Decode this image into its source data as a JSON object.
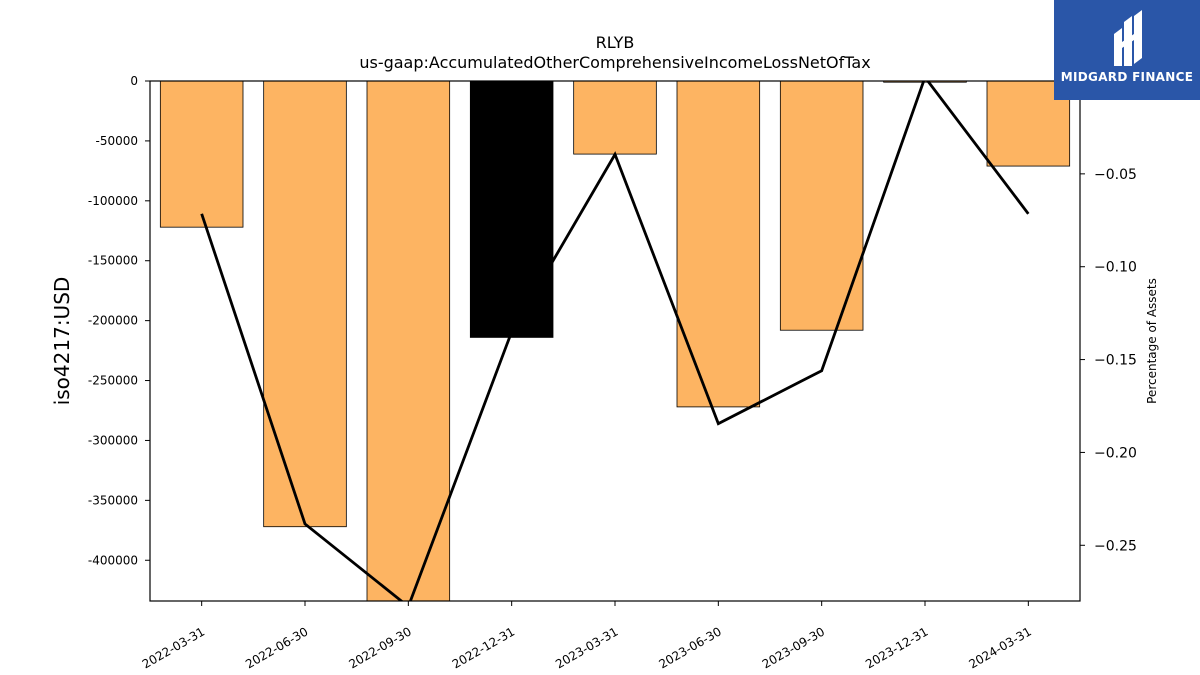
{
  "chart_data": {
    "type": "bar",
    "title": "RLYB",
    "subtitle": "us-gaap:AccumulatedOtherComprehensiveIncomeLossNetOfTax",
    "ylabel": "iso4217:USD",
    "ylabel_right": "Percentage of Assets",
    "categories": [
      "2022-03-31",
      "2022-06-30",
      "2022-09-30",
      "2022-12-31",
      "2023-03-31",
      "2023-06-30",
      "2023-09-30",
      "2023-12-31",
      "2024-03-31"
    ],
    "series": [
      {
        "values": [
          -122000,
          -372000,
          -434000,
          -214000,
          -61000,
          -272000,
          -208000,
          -1000,
          -71000
        ],
        "colors": [
          "#fdb462",
          "#fdb462",
          "#fdb462",
          "#000000",
          "#fdb462",
          "#fdb462",
          "#fdb462",
          "#fdb462",
          "#fdb462"
        ],
        "axis": "left"
      },
      {
        "type": "line",
        "values": [
          -0.0715,
          -0.2385,
          -0.283,
          -0.135,
          -0.0395,
          -0.1845,
          -0.156,
          0.002,
          -0.0715
        ],
        "color": "#000000",
        "axis": "right"
      }
    ],
    "ylim": [
      -434000,
      0
    ],
    "yticks": [
      0,
      -50000,
      -100000,
      -150000,
      -200000,
      -250000,
      -300000,
      -350000,
      -400000
    ],
    "ylim_right": [
      -0.28,
      0.0
    ],
    "yticks_right": [
      -0.05,
      -0.1,
      -0.15,
      -0.2,
      -0.25
    ],
    "grid": false,
    "legend": "none"
  },
  "logo": {
    "name": "MIDGARD FINANCE",
    "background": "#2a56a8"
  }
}
